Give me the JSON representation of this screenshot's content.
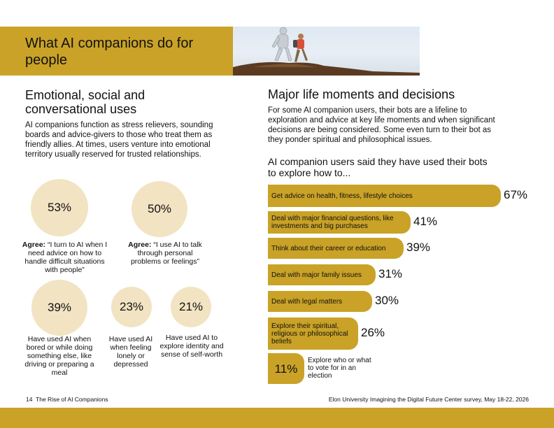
{
  "header": {
    "title": "What AI companions do for people"
  },
  "left": {
    "title": "Emotional, social and conversational uses",
    "intro": "AI companions function as stress relievers, sounding boards and advice-givers to those who treat them as friendly allies. At times, users venture into emotional territory usually reserved for trusted relationships.",
    "stats": [
      {
        "value": "53%",
        "label_bold": "Agree:",
        "label": " “I turn to AI when I need advice on how to handle difficult situations with people”"
      },
      {
        "value": "50%",
        "label_bold": "Agree:",
        "label": " “I use AI to talk through personal problems or feelings”"
      },
      {
        "value": "39%",
        "label": "Have used AI when bored or while doing something else, like driving or preparing a meal"
      },
      {
        "value": "23%",
        "label": "Have used AI when feeling lonely or depressed"
      },
      {
        "value": "21%",
        "label": "Have used AI to explore identity and sense of self-worth"
      }
    ]
  },
  "right": {
    "title": "Major life moments and decisions",
    "intro": "For some AI companion users, their bots are a lifeline to exploration and advice at key life moments and when significant decisions are being considered. Some even turn to their bot as they ponder spiritual and philosophical issues.",
    "bar_heading": "AI companion users said they have used their bots to explore how to...",
    "chart_data": {
      "type": "bar",
      "categories": [
        "Get advice on health, fitness, lifestyle choices",
        "Deal with major financial questions, like investments and big purchases",
        "Think about their career or education",
        "Deal with major family issues",
        "Deal with legal matters",
        "Explore their spiritual, religious or philosophical beliefs",
        "Explore who or what to vote for in an election"
      ],
      "values": [
        67,
        41,
        39,
        31,
        30,
        26,
        11
      ],
      "value_labels": [
        "67%",
        "41%",
        "39%",
        "31%",
        "30%",
        "26%",
        "11%"
      ],
      "title": "",
      "xlabel": "",
      "ylabel": "",
      "xlim": [
        0,
        67
      ]
    }
  },
  "footer": {
    "page": "14",
    "doc_title": "The Rise of AI Companions",
    "source": "Elon University Imagining the Digital Future Center survey, May 18-22, 2026"
  },
  "colors": {
    "gold": "#c9a227",
    "cream": "#f2e3c2"
  }
}
